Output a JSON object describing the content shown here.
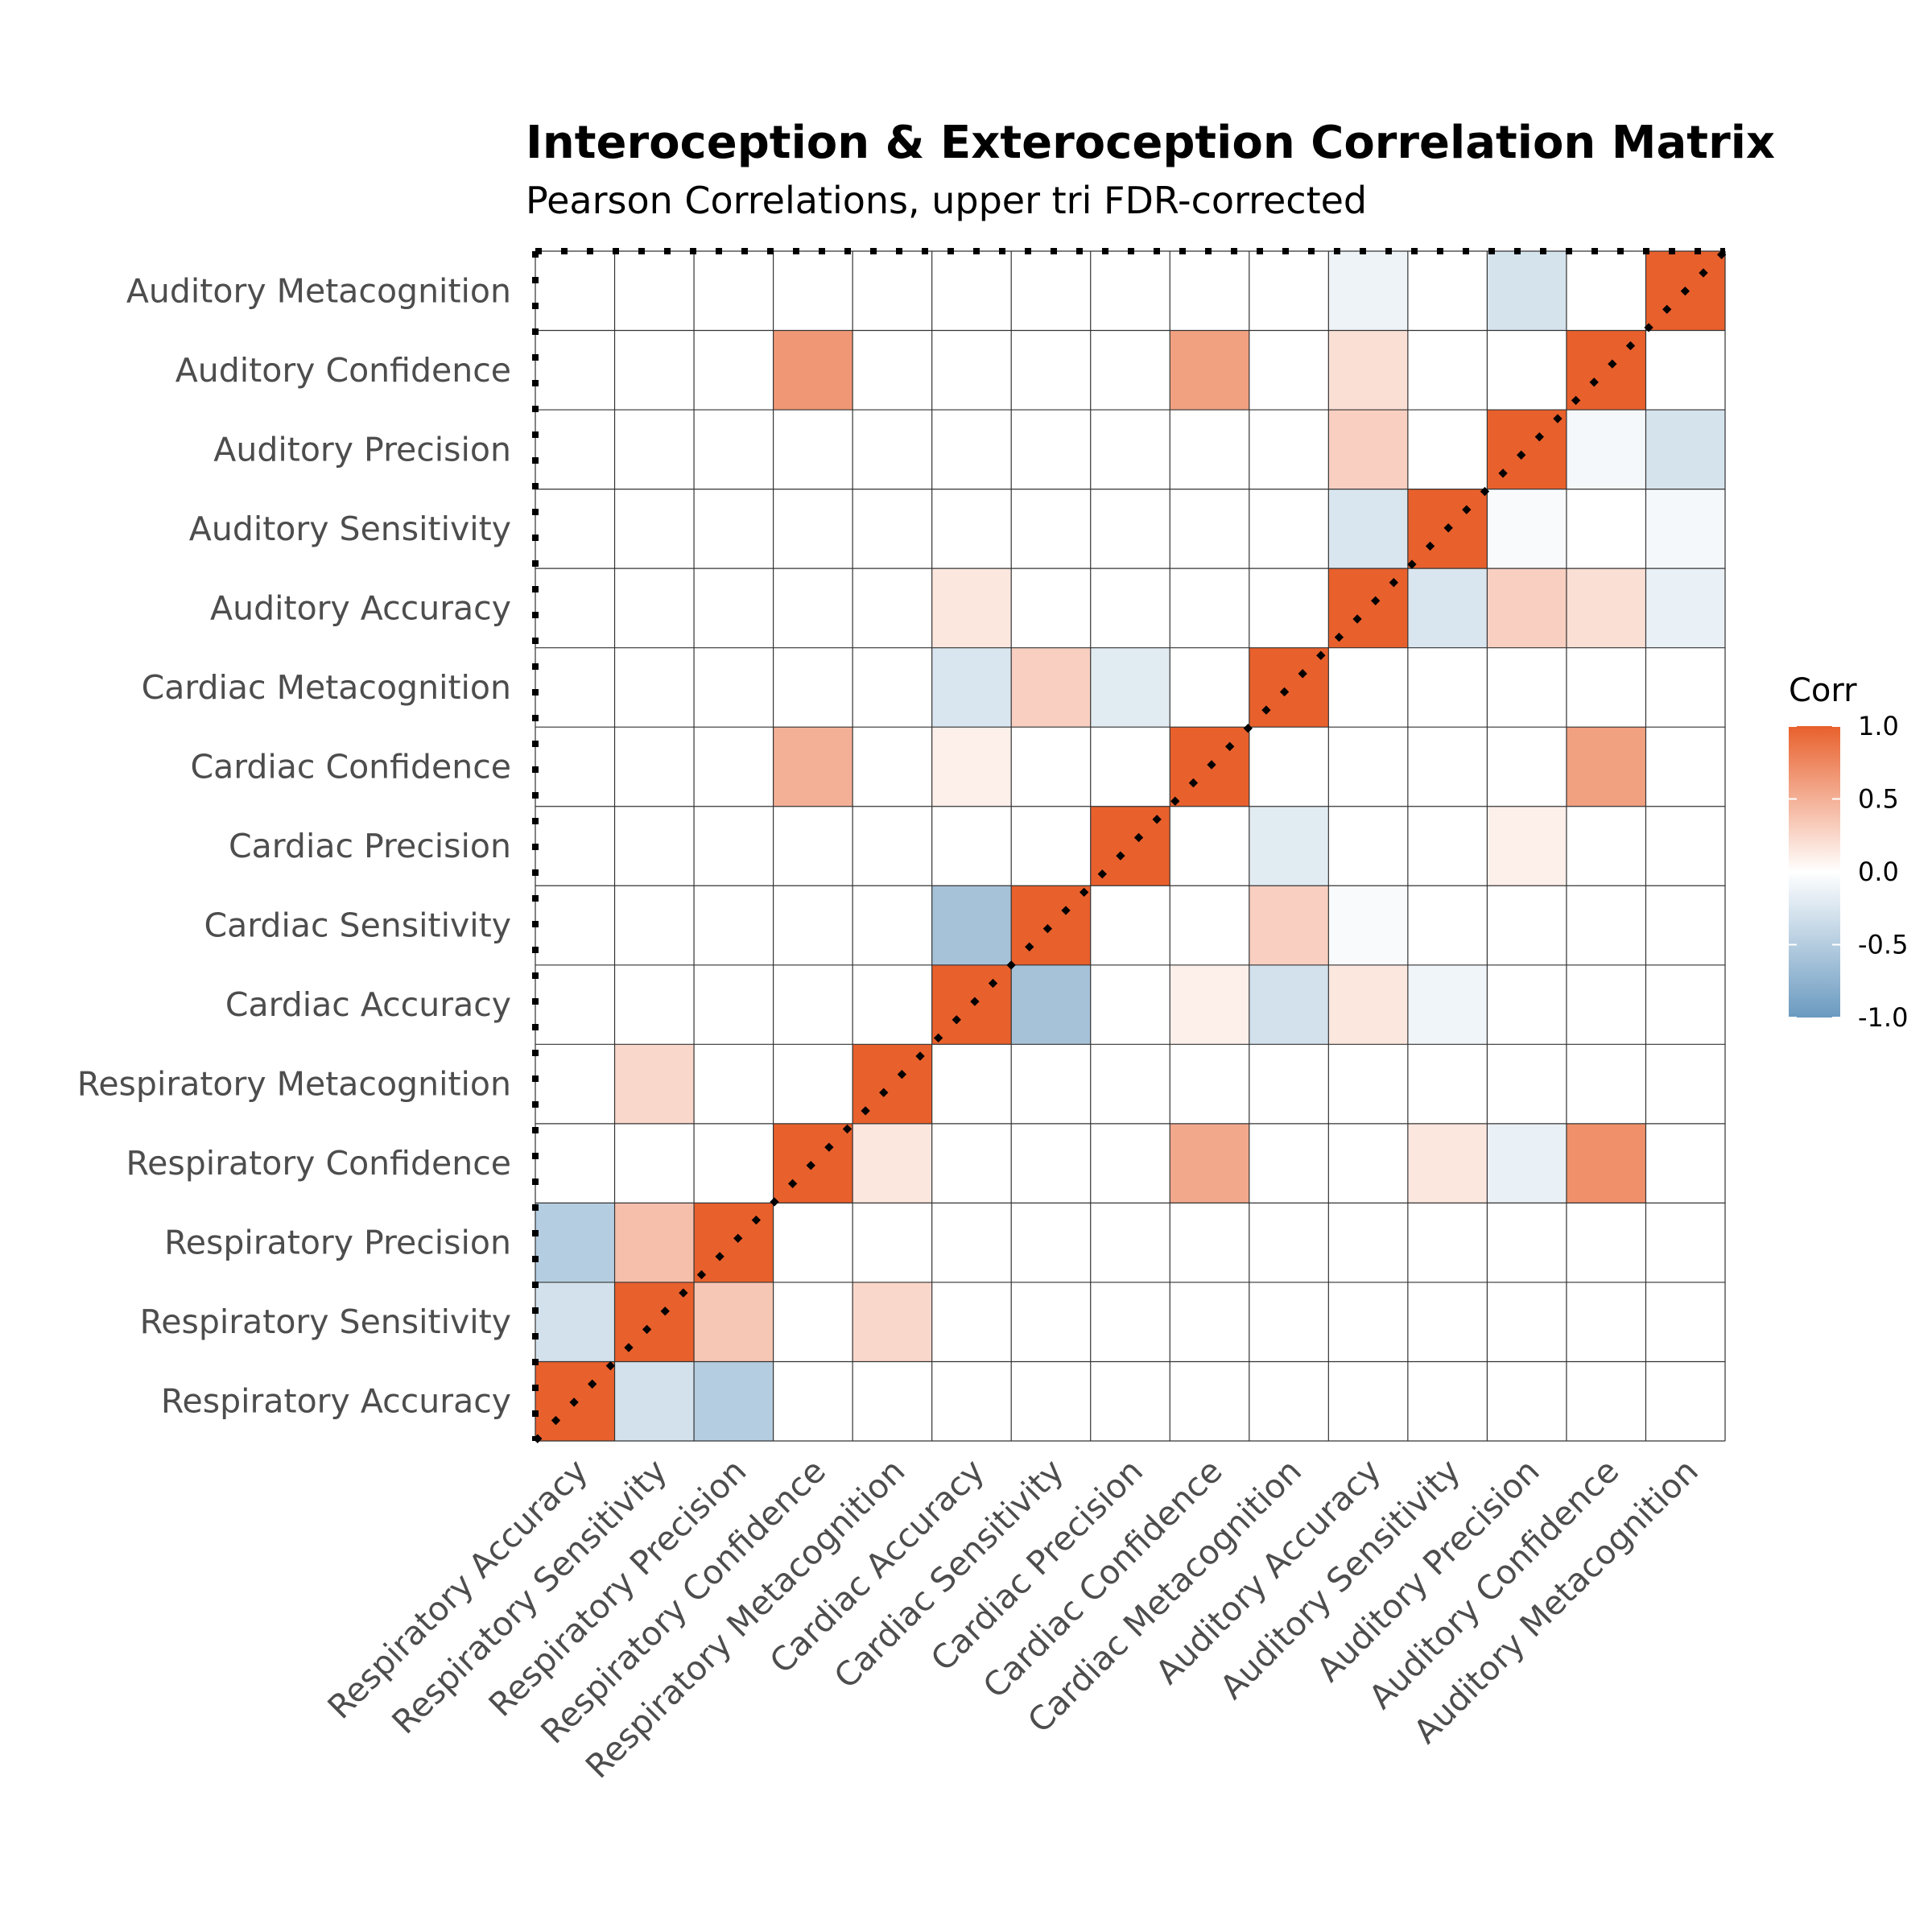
{
  "chart_data": {
    "type": "heatmap",
    "title": "Interoception & Exteroception Correlation Matrix",
    "subtitle": "Pearson Correlations, upper tri FDR-corrected",
    "legend_title": "Corr",
    "legend_ticks": [
      "1.0",
      "0.5",
      "0.0",
      "-0.5",
      "-1.0"
    ],
    "legend_tick_values": [
      1,
      0.5,
      0,
      -0.5,
      -1
    ],
    "legend_placement": "right",
    "colors": {
      "high": "#e8602c",
      "mid": "#ffffff",
      "low": "#6a9ac0"
    },
    "grid": true,
    "value_range": [
      -1,
      1
    ],
    "variables": [
      "Respiratory Accuracy",
      "Respiratory Sensitivity",
      "Respiratory Precision",
      "Respiratory Confidence",
      "Respiratory Metacognition",
      "Cardiac Accuracy",
      "Cardiac Sensitivity",
      "Cardiac Precision",
      "Cardiac Confidence",
      "Cardiac Metacognition",
      "Auditory Accuracy",
      "Auditory Sensitivity",
      "Auditory Precision",
      "Auditory Confidence",
      "Auditory Metacognition"
    ],
    "matrix": [
      [
        1.0,
        -0.3,
        -0.5,
        0,
        0,
        0,
        0,
        0,
        0,
        0,
        0,
        0,
        0,
        0,
        0
      ],
      [
        -0.3,
        1.0,
        0.35,
        0,
        0.25,
        0,
        0,
        0,
        0,
        0,
        0,
        0,
        0,
        0,
        0
      ],
      [
        -0.5,
        0.4,
        1.0,
        0,
        0,
        0,
        0,
        0,
        0,
        0,
        0,
        0,
        0,
        0,
        0
      ],
      [
        0,
        0,
        0,
        1.0,
        0.15,
        0,
        0,
        0,
        0.55,
        0,
        0,
        0.15,
        -0.15,
        0.7,
        0
      ],
      [
        0,
        0.25,
        0,
        0,
        1.0,
        0,
        0,
        0,
        0,
        0,
        0,
        0,
        0,
        0,
        0
      ],
      [
        0,
        0,
        0,
        0,
        0,
        1.0,
        -0.6,
        0,
        0.1,
        -0.3,
        0.15,
        -0.1,
        0,
        0,
        0
      ],
      [
        0,
        0,
        0,
        0,
        0,
        -0.6,
        1.0,
        0,
        0,
        0.3,
        -0.05,
        0,
        0,
        0,
        0
      ],
      [
        0,
        0,
        0,
        0,
        0,
        0,
        0,
        1.0,
        0,
        -0.2,
        0,
        0,
        0.1,
        0,
        0
      ],
      [
        0,
        0,
        0,
        0.5,
        0,
        0.1,
        0,
        0,
        1.0,
        0,
        0,
        0,
        0,
        0.6,
        0
      ],
      [
        0,
        0,
        0,
        0,
        0,
        -0.25,
        0.3,
        -0.2,
        0,
        1.0,
        0,
        0,
        0,
        0,
        0
      ],
      [
        0,
        0,
        0,
        0,
        0,
        0.15,
        0,
        0,
        0,
        0,
        1.0,
        -0.25,
        0.3,
        0.2,
        -0.15
      ],
      [
        0,
        0,
        0,
        0,
        0,
        0,
        0,
        0,
        0,
        0,
        -0.25,
        1.0,
        -0.05,
        0,
        -0.07
      ],
      [
        0,
        0,
        0,
        0,
        0,
        0,
        0,
        0,
        0,
        0,
        0.3,
        0,
        1.0,
        -0.07,
        -0.28
      ],
      [
        0,
        0,
        0,
        0.65,
        0,
        0,
        0,
        0,
        0.6,
        0,
        0.2,
        0,
        0,
        1.0,
        0
      ],
      [
        0,
        0,
        0,
        0,
        0,
        0,
        0,
        0,
        0,
        0,
        -0.12,
        0,
        -0.28,
        0,
        1.0
      ]
    ]
  }
}
